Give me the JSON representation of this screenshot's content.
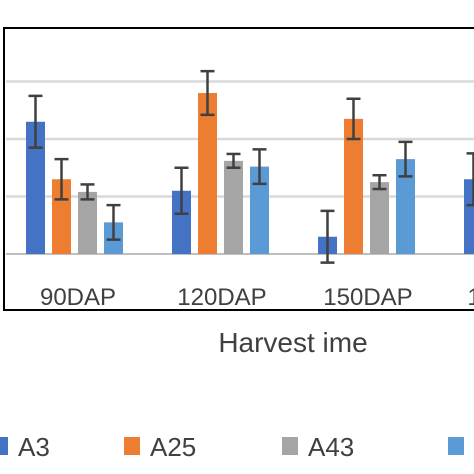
{
  "chart_data": {
    "type": "bar",
    "xlabel": "Harvest ime",
    "categories": [
      "90DAP",
      "120DAP",
      "150DAP",
      "1"
    ],
    "series": [
      {
        "name": "A3",
        "color": "#4472C4",
        "values": [
          2.3,
          1.1,
          0.3,
          1.3
        ],
        "errors": [
          0.45,
          0.4,
          0.45,
          0.45
        ]
      },
      {
        "name": "A25",
        "color": "#ED7D31",
        "values": [
          1.3,
          2.8,
          2.35,
          null
        ],
        "errors": [
          0.35,
          0.38,
          0.35,
          null
        ]
      },
      {
        "name": "A43",
        "color": "#A5A5A5",
        "values": [
          1.08,
          1.62,
          1.25,
          null
        ],
        "errors": [
          0.13,
          0.12,
          0.12,
          null
        ]
      },
      {
        "name": "",
        "color": "#5B9BD5",
        "values": [
          0.55,
          1.52,
          1.65,
          null
        ],
        "errors": [
          0.3,
          0.3,
          0.3,
          null
        ]
      }
    ],
    "ylim": [
      0,
      3.2
    ],
    "gridlines": [
      0,
      1,
      2,
      3
    ],
    "grid": true,
    "legend": {
      "placement": "bottom",
      "labels": [
        "A3",
        "A25",
        "A43",
        ""
      ]
    }
  }
}
